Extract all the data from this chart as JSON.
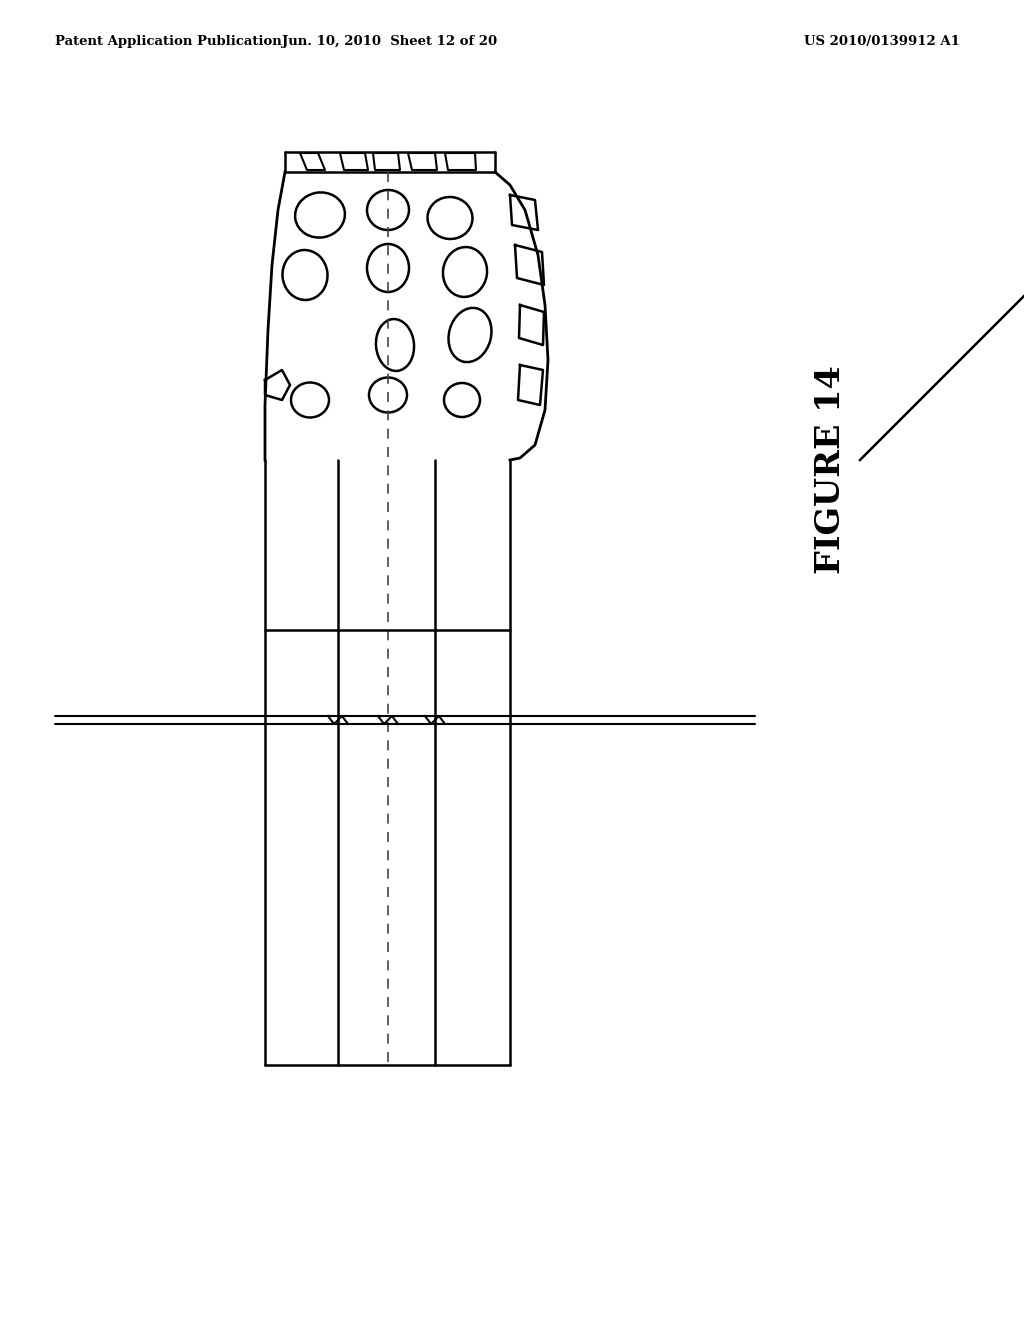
{
  "header_left": "Patent Application Publication",
  "header_mid": "Jun. 10, 2010  Sheet 12 of 20",
  "header_right": "US 2010/0139912 A1",
  "figure_label": "FIGURE 14",
  "bg_color": "#ffffff",
  "line_color": "#000000",
  "dash_color": "#444444"
}
